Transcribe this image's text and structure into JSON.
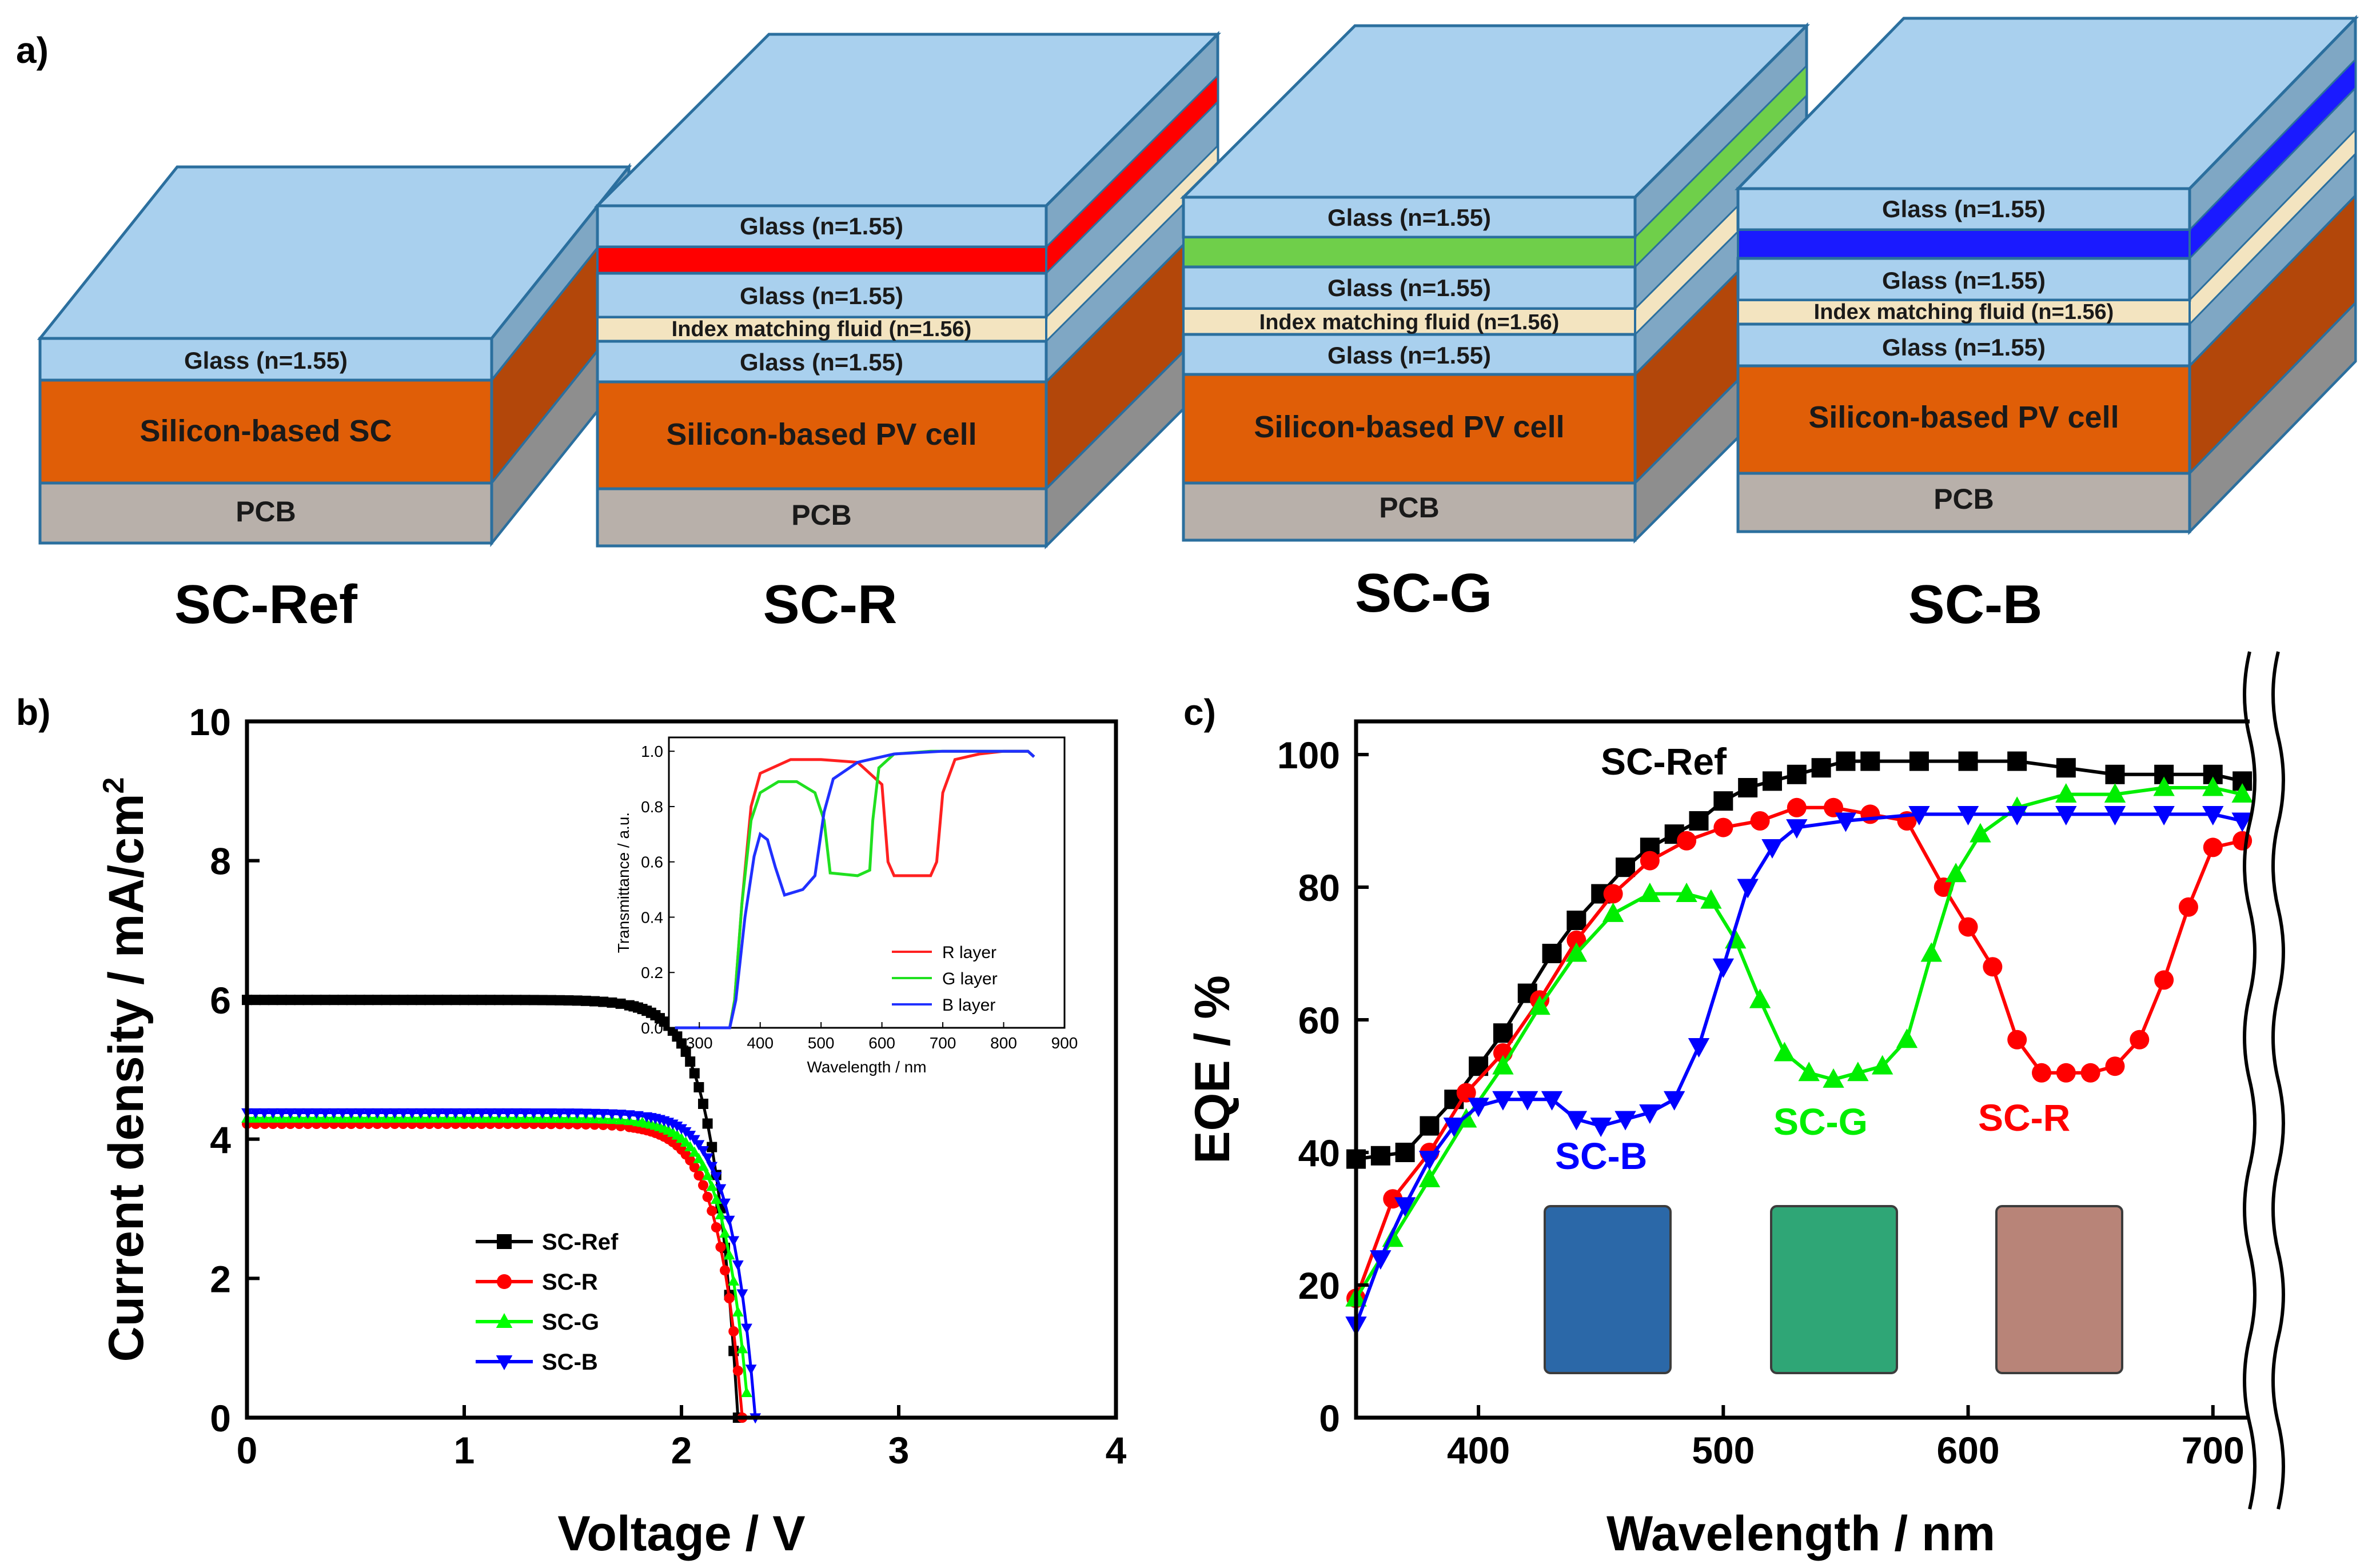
{
  "panels": {
    "a": "a)",
    "b": "b)",
    "c": "c)"
  },
  "stacks": [
    {
      "name": "SC-Ref",
      "glass_top": "Glass (n=1.55)",
      "cell": "Silicon-based SC",
      "pcb": "PCB"
    },
    {
      "name": "SC-R",
      "glass_top": "Glass (n=1.55)",
      "filter_color": "#ff0000",
      "glass_mid": "Glass (n=1.55)",
      "fluid": "Index matching fluid (n=1.56)",
      "glass_low": "Glass (n=1.55)",
      "cell": "Silicon-based PV cell",
      "pcb": "PCB"
    },
    {
      "name": "SC-G",
      "glass_top": "Glass (n=1.55)",
      "filter_color": "#6fcf4a",
      "glass_mid": "Glass (n=1.55)",
      "fluid": "Index matching fluid (n=1.56)",
      "glass_low": "Glass (n=1.55)",
      "cell": "Silicon-based PV cell",
      "pcb": "PCB"
    },
    {
      "name": "SC-B",
      "glass_top": "Glass (n=1.55)",
      "filter_color": "#1a1aff",
      "glass_mid": "Glass (n=1.55)",
      "fluid": "Index matching fluid (n=1.56)",
      "glass_low": "Glass (n=1.55)",
      "cell": "Silicon-based PV cell",
      "pcb": "PCB"
    }
  ],
  "chart_data": [
    {
      "type": "line",
      "title": "",
      "xlabel": "Voltage / V",
      "ylabel": "Current density / mA/cm",
      "ylabel_sup": "2",
      "xlim": [
        0,
        4
      ],
      "ylim": [
        0,
        10
      ],
      "xticks": [
        "0",
        "1",
        "2",
        "3",
        "4"
      ],
      "yticks": [
        "0",
        "2",
        "4",
        "6",
        "8",
        "10"
      ],
      "legend_position": "bottom-left",
      "series": [
        {
          "name": "SC-Ref",
          "color": "#000000",
          "marker": "square",
          "jsc": 6.0,
          "voc": 2.26
        },
        {
          "name": "SC-R",
          "color": "#ff0000",
          "marker": "circle",
          "jsc": 4.22,
          "voc": 2.28
        },
        {
          "name": "SC-G",
          "color": "#00ff00",
          "marker": "triangle-up",
          "jsc": 4.3,
          "voc": 2.31
        },
        {
          "name": "SC-B",
          "color": "#0000ff",
          "marker": "triangle-down",
          "jsc": 4.38,
          "voc": 2.34
        }
      ],
      "inset": {
        "type": "line",
        "xlabel": "Wavelength / nm",
        "ylabel": "Transmittance / a.u.",
        "xlim": [
          250,
          900
        ],
        "ylim": [
          0,
          1.05
        ],
        "xticks": [
          "300",
          "400",
          "500",
          "600",
          "700",
          "800",
          "900"
        ],
        "yticks": [
          "0.0",
          "0.2",
          "0.4",
          "0.6",
          "0.8",
          "1.0"
        ],
        "series": [
          {
            "name": "R layer",
            "color": "#ff2020",
            "x": [
              260,
              350,
              358,
              370,
              385,
              400,
              450,
              500,
              560,
              600,
              610,
              620,
              680,
              690,
              700,
              720,
              760,
              800,
              840,
              850
            ],
            "y": [
              0,
              0,
              0.1,
              0.45,
              0.8,
              0.92,
              0.97,
              0.97,
              0.96,
              0.88,
              0.6,
              0.55,
              0.55,
              0.6,
              0.85,
              0.97,
              0.99,
              1.0,
              1.0,
              0.98
            ]
          },
          {
            "name": "G layer",
            "color": "#20e020",
            "x": [
              260,
              350,
              358,
              370,
              385,
              400,
              430,
              460,
              490,
              505,
              515,
              560,
              580,
              585,
              595,
              620,
              680,
              760,
              840,
              850
            ],
            "y": [
              0,
              0,
              0.1,
              0.45,
              0.75,
              0.85,
              0.89,
              0.89,
              0.85,
              0.75,
              0.56,
              0.55,
              0.57,
              0.75,
              0.94,
              0.99,
              1.0,
              1.0,
              1.0,
              0.98
            ]
          },
          {
            "name": "B layer",
            "color": "#2030ff",
            "x": [
              260,
              350,
              360,
              375,
              390,
              400,
              412,
              425,
              440,
              470,
              490,
              505,
              520,
              560,
              620,
              700,
              780,
              840,
              850
            ],
            "y": [
              0,
              0,
              0.1,
              0.4,
              0.62,
              0.7,
              0.68,
              0.58,
              0.48,
              0.5,
              0.55,
              0.78,
              0.9,
              0.96,
              0.99,
              1.0,
              1.0,
              1.0,
              0.98
            ]
          }
        ]
      }
    },
    {
      "type": "line",
      "title": "",
      "xlabel": "Wavelength / nm",
      "ylabel": "EQE / %",
      "xlim": [
        350,
        715
      ],
      "ylim": [
        0,
        105
      ],
      "xticks": [
        "400",
        "500",
        "600",
        "700"
      ],
      "yticks": [
        "0",
        "20",
        "40",
        "60",
        "80",
        "100"
      ],
      "series": [
        {
          "name": "SC-Ref",
          "color": "#000000",
          "marker": "square",
          "x": [
            350,
            360,
            370,
            380,
            390,
            400,
            410,
            420,
            430,
            440,
            450,
            460,
            470,
            480,
            490,
            500,
            510,
            520,
            530,
            540,
            550,
            560,
            580,
            600,
            620,
            640,
            660,
            680,
            700,
            712
          ],
          "y": [
            39,
            39.5,
            40,
            44,
            48,
            53,
            58,
            64,
            70,
            75,
            79,
            83,
            86,
            88,
            90,
            93,
            95,
            96,
            97,
            98,
            99,
            99,
            99,
            99,
            99,
            98,
            97,
            97,
            97,
            96
          ]
        },
        {
          "name": "SC-R",
          "color": "#ff0000",
          "marker": "circle",
          "x": [
            350,
            365,
            380,
            395,
            410,
            425,
            440,
            455,
            470,
            485,
            500,
            515,
            530,
            545,
            560,
            575,
            590,
            600,
            610,
            620,
            630,
            640,
            650,
            660,
            670,
            680,
            690,
            700,
            712
          ],
          "y": [
            18,
            33,
            40,
            49,
            55,
            63,
            72,
            79,
            84,
            87,
            89,
            90,
            92,
            92,
            91,
            90,
            80,
            74,
            68,
            57,
            52,
            52,
            52,
            53,
            57,
            66,
            77,
            86,
            87
          ]
        },
        {
          "name": "SC-G",
          "color": "#00ee00",
          "marker": "triangle-up",
          "x": [
            350,
            365,
            380,
            395,
            410,
            425,
            440,
            455,
            470,
            485,
            495,
            505,
            515,
            525,
            535,
            545,
            555,
            565,
            575,
            585,
            595,
            605,
            620,
            640,
            660,
            680,
            700,
            712
          ],
          "y": [
            18,
            27,
            36,
            45,
            53,
            62,
            70,
            76,
            79,
            79,
            78,
            72,
            63,
            55,
            52,
            51,
            52,
            53,
            57,
            70,
            82,
            88,
            92,
            94,
            94,
            95,
            95,
            94
          ]
        },
        {
          "name": "SC-B",
          "color": "#0000ff",
          "marker": "triangle-down",
          "x": [
            350,
            360,
            370,
            380,
            390,
            400,
            410,
            420,
            430,
            440,
            450,
            460,
            470,
            480,
            490,
            500,
            510,
            520,
            530,
            550,
            580,
            600,
            620,
            640,
            660,
            680,
            700,
            712
          ],
          "y": [
            14,
            24,
            32,
            39,
            44,
            47,
            48,
            48,
            48,
            45,
            44,
            45,
            46,
            48,
            56,
            68,
            80,
            86,
            89,
            90,
            91,
            91,
            91,
            91,
            91,
            91,
            91,
            90
          ]
        }
      ],
      "annotations": [
        "SC-Ref",
        "SC-G",
        "SC-R",
        "SC-B"
      ],
      "inset_photos": [
        {
          "label": "blue-filter-cell-photo",
          "color": "#2b68a8"
        },
        {
          "label": "green-filter-cell-photo",
          "color": "#2fa676"
        },
        {
          "label": "red-filter-cell-photo",
          "color": "#b88478"
        }
      ]
    }
  ]
}
